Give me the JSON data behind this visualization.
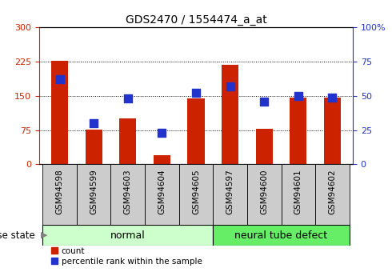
{
  "title": "GDS2470 / 1554474_a_at",
  "categories": [
    "GSM94598",
    "GSM94599",
    "GSM94603",
    "GSM94604",
    "GSM94605",
    "GSM94597",
    "GSM94600",
    "GSM94601",
    "GSM94602"
  ],
  "counts": [
    227,
    76,
    100,
    20,
    145,
    218,
    78,
    147,
    147
  ],
  "percentiles": [
    62,
    30,
    48,
    23,
    52,
    57,
    46,
    50,
    49
  ],
  "groups": [
    "normal",
    "normal",
    "normal",
    "normal",
    "normal",
    "neural tube defect",
    "neural tube defect",
    "neural tube defect",
    "neural tube defect"
  ],
  "left_ylim": [
    0,
    300
  ],
  "right_ylim": [
    0,
    100
  ],
  "left_yticks": [
    0,
    75,
    150,
    225,
    300
  ],
  "right_yticks": [
    0,
    25,
    50,
    75,
    100
  ],
  "bar_color": "#cc2200",
  "dot_color": "#2233cc",
  "normal_color": "#ccffcc",
  "defect_color": "#66ee66",
  "tick_bg_color": "#cccccc",
  "label_normal": "normal",
  "label_defect": "neural tube defect",
  "disease_state_label": "disease state",
  "legend_count": "count",
  "legend_percentile": "percentile rank within the sample",
  "bar_width": 0.5,
  "dot_size": 55,
  "title_fontsize": 10,
  "axis_fontsize": 8,
  "group_fontsize": 9
}
